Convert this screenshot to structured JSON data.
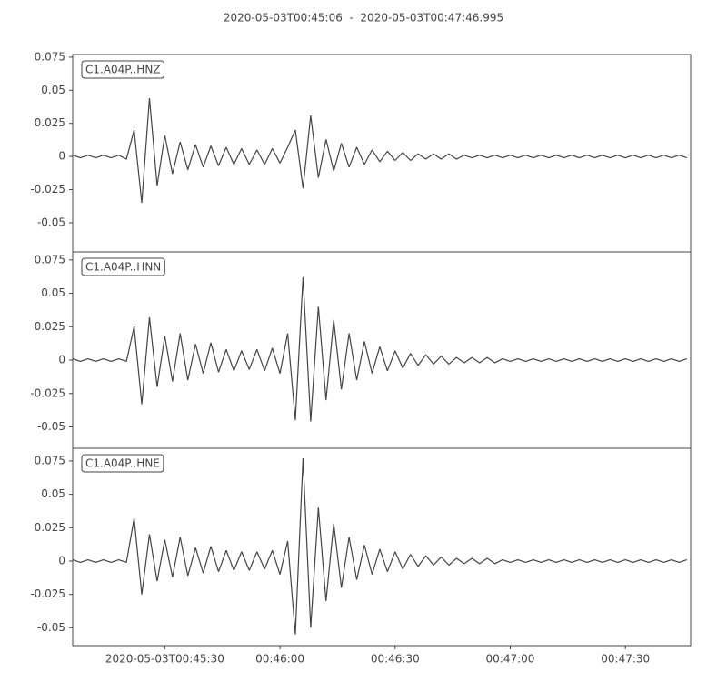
{
  "chart_data": [
    {
      "type": "line",
      "title": "2020-05-03T00:45:06  -  2020-05-03T00:47:46.995",
      "label": "C1.A04P..HNZ",
      "color": "#444444",
      "xlim": [
        0,
        160.995
      ],
      "ylim": [
        -0.072,
        0.077
      ],
      "yticks": [
        -0.05,
        -0.025,
        0.0,
        0.025,
        0.05,
        0.075
      ],
      "x": [
        0,
        2,
        4,
        6,
        8,
        10,
        12,
        14,
        16,
        18,
        20,
        22,
        24,
        26,
        28,
        30,
        32,
        34,
        36,
        38,
        40,
        42,
        44,
        46,
        48,
        50,
        52,
        54,
        56,
        58,
        60,
        62,
        64,
        66,
        68,
        70,
        72,
        74,
        76,
        78,
        80,
        82,
        84,
        86,
        88,
        90,
        92,
        94,
        96,
        98,
        100,
        102,
        104,
        106,
        108,
        110,
        112,
        114,
        116,
        118,
        120,
        122,
        124,
        126,
        128,
        130,
        132,
        134,
        136,
        138,
        140,
        142,
        144,
        146,
        148,
        150,
        152,
        154,
        156,
        158,
        160
      ],
      "values": [
        0.001,
        -0.001,
        0.001,
        -0.001,
        0.001,
        -0.001,
        0.001,
        -0.002,
        0.02,
        -0.035,
        0.044,
        -0.022,
        0.016,
        -0.013,
        0.011,
        -0.01,
        0.009,
        -0.008,
        0.008,
        -0.007,
        0.007,
        -0.006,
        0.006,
        -0.006,
        0.005,
        -0.006,
        0.006,
        -0.005,
        0.007,
        0.02,
        -0.024,
        0.031,
        -0.016,
        0.013,
        -0.011,
        0.01,
        -0.008,
        0.007,
        -0.006,
        0.005,
        -0.004,
        0.004,
        -0.003,
        0.003,
        -0.003,
        0.002,
        -0.002,
        0.002,
        -0.002,
        0.002,
        -0.002,
        0.001,
        -0.001,
        0.001,
        -0.001,
        0.001,
        -0.001,
        0.001,
        -0.001,
        0.001,
        -0.001,
        0.001,
        -0.001,
        0.001,
        -0.001,
        0.001,
        -0.001,
        0.001,
        -0.001,
        0.001,
        -0.001,
        0.001,
        -0.001,
        0.001,
        -0.001,
        0.001,
        -0.001,
        0.001,
        -0.001,
        0.001,
        -0.001
      ]
    },
    {
      "type": "line",
      "label": "C1.A04P..HNN",
      "color": "#444444",
      "xlim": [
        0,
        160.995
      ],
      "ylim": [
        -0.066,
        0.081
      ],
      "yticks": [
        -0.05,
        -0.025,
        0.0,
        0.025,
        0.05,
        0.075
      ],
      "x": [
        0,
        2,
        4,
        6,
        8,
        10,
        12,
        14,
        16,
        18,
        20,
        22,
        24,
        26,
        28,
        30,
        32,
        34,
        36,
        38,
        40,
        42,
        44,
        46,
        48,
        50,
        52,
        54,
        56,
        58,
        60,
        62,
        64,
        66,
        68,
        70,
        72,
        74,
        76,
        78,
        80,
        82,
        84,
        86,
        88,
        90,
        92,
        94,
        96,
        98,
        100,
        102,
        104,
        106,
        108,
        110,
        112,
        114,
        116,
        118,
        120,
        122,
        124,
        126,
        128,
        130,
        132,
        134,
        136,
        138,
        140,
        142,
        144,
        146,
        148,
        150,
        152,
        154,
        156,
        158,
        160
      ],
      "values": [
        0.001,
        -0.001,
        0.001,
        -0.001,
        0.001,
        -0.001,
        0.001,
        -0.001,
        0.025,
        -0.033,
        0.032,
        -0.02,
        0.018,
        -0.016,
        0.02,
        -0.015,
        0.012,
        -0.01,
        0.013,
        -0.009,
        0.008,
        -0.008,
        0.007,
        -0.007,
        0.008,
        -0.008,
        0.009,
        -0.01,
        0.02,
        -0.045,
        0.062,
        -0.046,
        0.04,
        -0.03,
        0.03,
        -0.022,
        0.02,
        -0.015,
        0.014,
        -0.01,
        0.01,
        -0.008,
        0.007,
        -0.006,
        0.005,
        -0.004,
        0.004,
        -0.003,
        0.003,
        -0.003,
        0.002,
        -0.002,
        0.002,
        -0.002,
        0.002,
        -0.002,
        0.001,
        -0.001,
        0.001,
        -0.001,
        0.001,
        -0.001,
        0.001,
        -0.001,
        0.001,
        -0.001,
        0.001,
        -0.001,
        0.001,
        -0.001,
        0.001,
        -0.001,
        0.001,
        -0.001,
        0.001,
        -0.001,
        0.001,
        -0.001,
        0.001,
        -0.001,
        0.001
      ]
    },
    {
      "type": "line",
      "label": "C1.A04P..HNE",
      "color": "#444444",
      "xlim": [
        0,
        160.995
      ],
      "ylim": [
        -0.0634,
        0.0845
      ],
      "yticks": [
        -0.05,
        -0.025,
        0.0,
        0.025,
        0.05,
        0.075
      ],
      "xticks": [
        {
          "value": 24,
          "label": "2020-05-03T00:45:30"
        },
        {
          "value": 54,
          "label": "00:46:00"
        },
        {
          "value": 84,
          "label": "00:46:30"
        },
        {
          "value": 114,
          "label": "00:47:00"
        },
        {
          "value": 144,
          "label": "00:47:30"
        }
      ],
      "x": [
        0,
        2,
        4,
        6,
        8,
        10,
        12,
        14,
        16,
        18,
        20,
        22,
        24,
        26,
        28,
        30,
        32,
        34,
        36,
        38,
        40,
        42,
        44,
        46,
        48,
        50,
        52,
        54,
        56,
        58,
        60,
        62,
        64,
        66,
        68,
        70,
        72,
        74,
        76,
        78,
        80,
        82,
        84,
        86,
        88,
        90,
        92,
        94,
        96,
        98,
        100,
        102,
        104,
        106,
        108,
        110,
        112,
        114,
        116,
        118,
        120,
        122,
        124,
        126,
        128,
        130,
        132,
        134,
        136,
        138,
        140,
        142,
        144,
        146,
        148,
        150,
        152,
        154,
        156,
        158,
        160
      ],
      "values": [
        0.001,
        -0.001,
        0.001,
        -0.001,
        0.001,
        -0.001,
        0.001,
        -0.001,
        0.032,
        -0.025,
        0.02,
        -0.015,
        0.016,
        -0.012,
        0.018,
        -0.011,
        0.01,
        -0.009,
        0.011,
        -0.008,
        0.008,
        -0.007,
        0.007,
        -0.007,
        0.007,
        -0.006,
        0.008,
        -0.01,
        0.015,
        -0.055,
        0.077,
        -0.05,
        0.04,
        -0.03,
        0.028,
        -0.02,
        0.018,
        -0.014,
        0.012,
        -0.01,
        0.009,
        -0.008,
        0.007,
        -0.006,
        0.005,
        -0.004,
        0.004,
        -0.003,
        0.003,
        -0.003,
        0.002,
        -0.002,
        0.002,
        -0.002,
        0.002,
        -0.002,
        0.001,
        -0.001,
        0.001,
        -0.001,
        0.001,
        -0.001,
        0.001,
        -0.001,
        0.001,
        -0.001,
        0.001,
        -0.001,
        0.001,
        -0.001,
        0.001,
        -0.001,
        0.001,
        -0.001,
        0.001,
        -0.001,
        0.001,
        -0.001,
        0.001,
        -0.001,
        0.001
      ]
    }
  ]
}
